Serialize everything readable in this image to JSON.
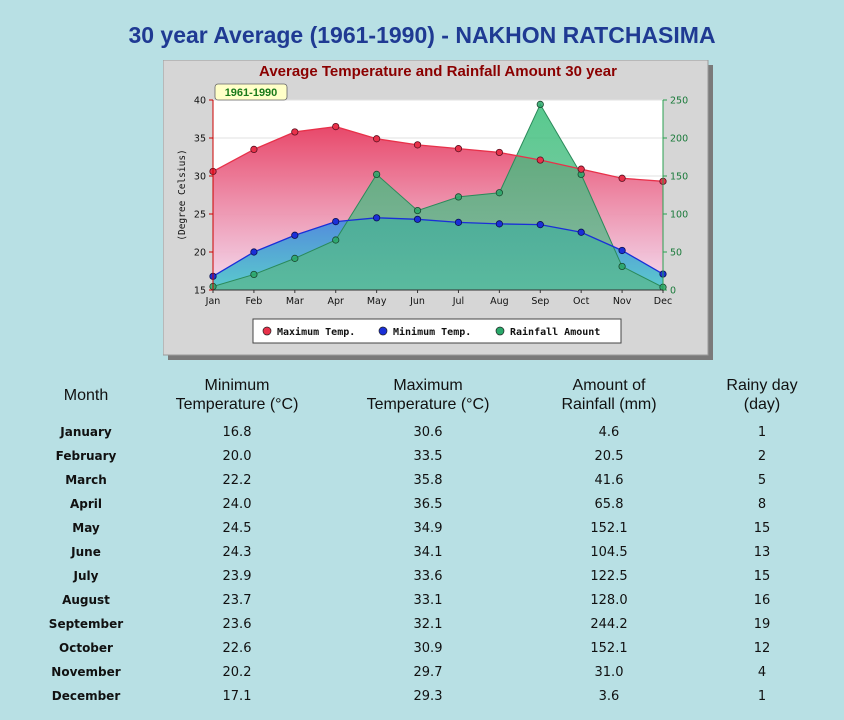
{
  "page_title": "30 year Average (1961-1990) - NAKHON RATCHASIMA",
  "chart_data": {
    "type": "line",
    "title": "Average Temperature and Rainfall Amount 30 year",
    "badge": "1961-1990",
    "ylabel": "(Degree Celsius)",
    "ylim": [
      15,
      40
    ],
    "y_ticks": [
      "15",
      "20",
      "25",
      "30",
      "35",
      "40"
    ],
    "y2lim": [
      0,
      250
    ],
    "y2_ticks": [
      "0",
      "50",
      "100",
      "150",
      "200",
      "250"
    ],
    "categories": [
      "Jan",
      "Feb",
      "Mar",
      "Apr",
      "May",
      "Jun",
      "Jul",
      "Aug",
      "Sep",
      "Oct",
      "Nov",
      "Dec"
    ],
    "series": [
      {
        "name": "Maximum Temp.",
        "axis": "left",
        "color": "#e8314a",
        "values": [
          30.6,
          33.5,
          35.8,
          36.5,
          34.9,
          34.1,
          33.6,
          33.1,
          32.1,
          30.9,
          29.7,
          29.3
        ]
      },
      {
        "name": "Minimum Temp.",
        "axis": "left",
        "color": "#1a2fd8",
        "values": [
          16.8,
          20.0,
          22.2,
          24.0,
          24.5,
          24.3,
          23.9,
          23.7,
          23.6,
          22.6,
          20.2,
          17.1
        ]
      },
      {
        "name": "Rainfall Amount",
        "axis": "right",
        "color": "#2eaa6a",
        "values": [
          4.6,
          20.5,
          41.6,
          65.8,
          152.1,
          104.5,
          122.5,
          128.0,
          244.2,
          152.1,
          31.0,
          3.6
        ]
      }
    ],
    "legend_position": "bottom",
    "grid": true
  },
  "table": {
    "headers": [
      {
        "line1": "Month",
        "line2": ""
      },
      {
        "line1": "Minimum",
        "line2": "Temperature (°C)"
      },
      {
        "line1": "Maximum",
        "line2": "Temperature (°C)"
      },
      {
        "line1": "Amount of",
        "line2": "Rainfall (mm)"
      },
      {
        "line1": "Rainy day",
        "line2": "(day)"
      }
    ],
    "rows": [
      [
        "January",
        "16.8",
        "30.6",
        "4.6",
        "1"
      ],
      [
        "February",
        "20.0",
        "33.5",
        "20.5",
        "2"
      ],
      [
        "March",
        "22.2",
        "35.8",
        "41.6",
        "5"
      ],
      [
        "April",
        "24.0",
        "36.5",
        "65.8",
        "8"
      ],
      [
        "May",
        "24.5",
        "34.9",
        "152.1",
        "15"
      ],
      [
        "June",
        "24.3",
        "34.1",
        "104.5",
        "13"
      ],
      [
        "July",
        "23.9",
        "33.6",
        "122.5",
        "15"
      ],
      [
        "August",
        "23.7",
        "33.1",
        "128.0",
        "16"
      ],
      [
        "September",
        "23.6",
        "32.1",
        "244.2",
        "19"
      ],
      [
        "October",
        "22.6",
        "30.9",
        "152.1",
        "12"
      ],
      [
        "November",
        "20.2",
        "29.7",
        "31.0",
        "4"
      ],
      [
        "December",
        "17.1",
        "29.3",
        "3.6",
        "1"
      ]
    ]
  }
}
